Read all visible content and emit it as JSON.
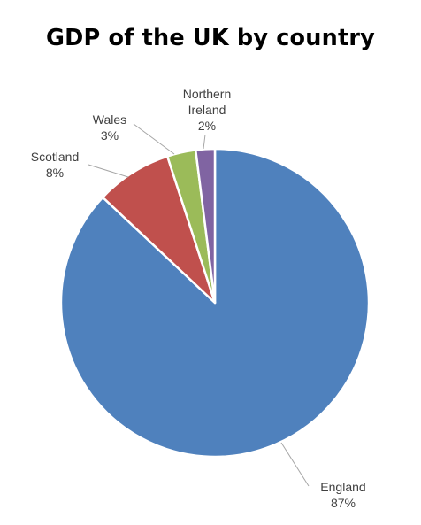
{
  "chart_data": {
    "type": "pie",
    "title": "GDP of the UK by country",
    "slices": [
      {
        "label": "England",
        "value": 87,
        "value_label": "87%",
        "color": "#4f81bd"
      },
      {
        "label": "Scotland",
        "value": 8,
        "value_label": "8%",
        "color": "#c0504d"
      },
      {
        "label": "Wales",
        "value": 3,
        "value_label": "3%",
        "color": "#9bbb59"
      },
      {
        "label": "Northern Ireland",
        "value": 2,
        "value_label": "2%",
        "color": "#8064a2"
      }
    ],
    "unit": "%"
  }
}
